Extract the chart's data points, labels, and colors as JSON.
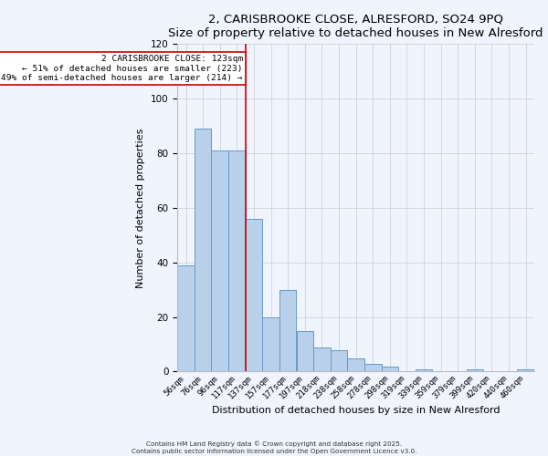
{
  "title": "2, CARISBROOKE CLOSE, ALRESFORD, SO24 9PQ",
  "subtitle": "Size of property relative to detached houses in New Alresford",
  "xlabel": "Distribution of detached houses by size in New Alresford",
  "ylabel": "Number of detached properties",
  "bar_labels": [
    "56sqm",
    "76sqm",
    "96sqm",
    "117sqm",
    "137sqm",
    "157sqm",
    "177sqm",
    "197sqm",
    "218sqm",
    "238sqm",
    "258sqm",
    "278sqm",
    "298sqm",
    "319sqm",
    "339sqm",
    "359sqm",
    "379sqm",
    "399sqm",
    "420sqm",
    "440sqm",
    "460sqm"
  ],
  "bar_values": [
    39,
    89,
    81,
    81,
    56,
    20,
    30,
    15,
    9,
    8,
    5,
    3,
    2,
    0,
    1,
    0,
    0,
    1,
    0,
    0,
    1
  ],
  "bar_color": "#b8d0ea",
  "bar_edge_color": "#6699cc",
  "vline_x_idx": 3.5,
  "vline_color": "#cc0000",
  "annotation_title": "2 CARISBROOKE CLOSE: 123sqm",
  "annotation_line1": "← 51% of detached houses are smaller (223)",
  "annotation_line2": "49% of semi-detached houses are larger (214) →",
  "annotation_box_color": "#ffffff",
  "annotation_box_edge": "#cc0000",
  "ylim": [
    0,
    120
  ],
  "yticks": [
    0,
    20,
    40,
    60,
    80,
    100,
    120
  ],
  "footer1": "Contains HM Land Registry data © Crown copyright and database right 2025.",
  "footer2": "Contains public sector information licensed under the Open Government Licence v3.0.",
  "bg_color": "#f0f4ff"
}
